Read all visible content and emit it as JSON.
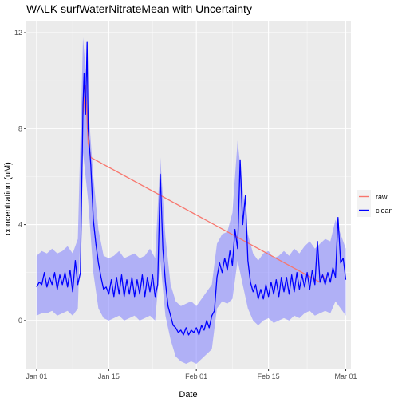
{
  "chart_data": {
    "type": "line",
    "title": "WALK surfWaterNitrateMean with Uncertainty",
    "xlabel": "Date",
    "ylabel": "concentration (uM)",
    "x_axis": {
      "type": "date",
      "range": [
        "2023-12-30",
        "2024-03-02"
      ],
      "ticks": [
        {
          "value": "2024-01-01",
          "label": "Jan 01"
        },
        {
          "value": "2024-01-15",
          "label": "Jan 15"
        },
        {
          "value": "2024-02-01",
          "label": "Feb 01"
        },
        {
          "value": "2024-02-15",
          "label": "Feb 15"
        },
        {
          "value": "2024-03-01",
          "label": "Mar 01"
        }
      ]
    },
    "y_axis": {
      "range": [
        -2,
        12.5
      ],
      "ticks": [
        0,
        4,
        8,
        12
      ]
    },
    "grid": true,
    "legend": {
      "position": "right",
      "entries": [
        {
          "label": "raw",
          "color": "#f8766d"
        },
        {
          "label": "clean",
          "color": "#0000ff"
        }
      ]
    },
    "uncertainty_band": {
      "color": "#7f7fff",
      "points": [
        [
          "2024-01-01",
          0.2,
          2.7
        ],
        [
          "2024-01-02",
          0.3,
          2.9
        ],
        [
          "2024-01-03",
          0.3,
          2.8
        ],
        [
          "2024-01-04",
          0.4,
          3.0
        ],
        [
          "2024-01-05",
          0.2,
          2.8
        ],
        [
          "2024-01-06",
          0.3,
          2.9
        ],
        [
          "2024-01-07",
          0.4,
          3.1
        ],
        [
          "2024-01-08",
          0.2,
          2.8
        ],
        [
          "2024-01-09",
          0.5,
          3.4
        ],
        [
          "2024-01-10",
          7.0,
          11.8
        ],
        [
          "2024-01-11",
          5.0,
          9.0
        ],
        [
          "2024-01-12",
          2.0,
          6.0
        ],
        [
          "2024-01-13",
          0.5,
          3.8
        ],
        [
          "2024-01-14",
          0.1,
          2.7
        ],
        [
          "2024-01-15",
          0.0,
          2.6
        ],
        [
          "2024-01-16",
          0.1,
          2.7
        ],
        [
          "2024-01-17",
          0.2,
          2.9
        ],
        [
          "2024-01-18",
          0.0,
          2.6
        ],
        [
          "2024-01-19",
          0.1,
          2.7
        ],
        [
          "2024-01-20",
          0.2,
          2.8
        ],
        [
          "2024-01-21",
          0.0,
          2.6
        ],
        [
          "2024-01-22",
          0.1,
          2.7
        ],
        [
          "2024-01-23",
          0.2,
          3.0
        ],
        [
          "2024-01-24",
          0.0,
          2.6
        ],
        [
          "2024-01-25",
          2.5,
          6.8
        ],
        [
          "2024-01-26",
          0.2,
          3.5
        ],
        [
          "2024-01-27",
          -0.8,
          1.5
        ],
        [
          "2024-01-28",
          -1.5,
          0.8
        ],
        [
          "2024-01-29",
          -1.7,
          0.6
        ],
        [
          "2024-01-30",
          -1.8,
          0.7
        ],
        [
          "2024-01-31",
          -1.7,
          0.8
        ],
        [
          "2024-02-01",
          -1.8,
          0.6
        ],
        [
          "2024-02-02",
          -1.6,
          0.9
        ],
        [
          "2024-02-03",
          -1.4,
          1.2
        ],
        [
          "2024-02-04",
          -1.2,
          1.5
        ],
        [
          "2024-02-05",
          0.5,
          3.2
        ],
        [
          "2024-02-06",
          0.8,
          3.6
        ],
        [
          "2024-02-07",
          0.7,
          3.7
        ],
        [
          "2024-02-08",
          0.9,
          4.5
        ],
        [
          "2024-02-09",
          2.5,
          7.5
        ],
        [
          "2024-02-10",
          1.5,
          5.5
        ],
        [
          "2024-02-11",
          0.5,
          3.6
        ],
        [
          "2024-02-12",
          0.0,
          2.8
        ],
        [
          "2024-02-13",
          -0.2,
          2.5
        ],
        [
          "2024-02-14",
          0.0,
          2.8
        ],
        [
          "2024-02-15",
          0.1,
          2.9
        ],
        [
          "2024-02-16",
          -0.1,
          2.6
        ],
        [
          "2024-02-17",
          0.0,
          2.7
        ],
        [
          "2024-02-18",
          0.1,
          2.9
        ],
        [
          "2024-02-19",
          0.0,
          2.7
        ],
        [
          "2024-02-20",
          0.2,
          3.0
        ],
        [
          "2024-02-21",
          0.1,
          2.8
        ],
        [
          "2024-02-22",
          0.3,
          3.1
        ],
        [
          "2024-02-23",
          0.4,
          3.3
        ],
        [
          "2024-02-24",
          0.2,
          3.0
        ],
        [
          "2024-02-25",
          0.3,
          3.2
        ],
        [
          "2024-02-26",
          0.4,
          3.4
        ],
        [
          "2024-02-27",
          0.3,
          3.3
        ],
        [
          "2024-02-28",
          0.8,
          4.2
        ],
        [
          "2024-02-29",
          0.5,
          3.6
        ],
        [
          "2024-03-01",
          0.2,
          3.0
        ]
      ]
    },
    "series": [
      {
        "name": "raw",
        "color": "#f8766d",
        "points": [
          [
            "2024-01-10",
            8.6
          ],
          [
            "2024-01-10.5",
            9.8
          ],
          [
            "2024-01-11",
            7.4
          ],
          [
            "2024-01-11.5",
            6.8
          ],
          [
            "2024-02-25",
            1.6
          ],
          [
            "2024-02-25.5",
            1.9
          ],
          [
            "2024-02-26",
            1.7
          ]
        ]
      },
      {
        "name": "clean",
        "color": "#0000ff",
        "points": [
          [
            "2024-01-01",
            1.4
          ],
          [
            "2024-01-01.5",
            1.6
          ],
          [
            "2024-01-02",
            1.5
          ],
          [
            "2024-01-02.5",
            2.0
          ],
          [
            "2024-01-03",
            1.4
          ],
          [
            "2024-01-03.5",
            1.8
          ],
          [
            "2024-01-04",
            1.5
          ],
          [
            "2024-01-04.5",
            2.0
          ],
          [
            "2024-01-05",
            1.3
          ],
          [
            "2024-01-05.5",
            1.9
          ],
          [
            "2024-01-06",
            1.5
          ],
          [
            "2024-01-06.5",
            2.0
          ],
          [
            "2024-01-07",
            1.4
          ],
          [
            "2024-01-07.5",
            2.1
          ],
          [
            "2024-01-08",
            1.2
          ],
          [
            "2024-01-08.5",
            2.5
          ],
          [
            "2024-01-09",
            1.5
          ],
          [
            "2024-01-09.5",
            2.0
          ],
          [
            "2024-01-10",
            9.0
          ],
          [
            "2024-01-10.2",
            10.3
          ],
          [
            "2024-01-10.5",
            8.6
          ],
          [
            "2024-01-10.8",
            11.6
          ],
          [
            "2024-01-11",
            8.0
          ],
          [
            "2024-01-11.5",
            6.5
          ],
          [
            "2024-01-12",
            4.2
          ],
          [
            "2024-01-12.5",
            3.2
          ],
          [
            "2024-01-13",
            2.4
          ],
          [
            "2024-01-13.5",
            1.8
          ],
          [
            "2024-01-14",
            1.3
          ],
          [
            "2024-01-14.5",
            1.4
          ],
          [
            "2024-01-15",
            1.1
          ],
          [
            "2024-01-15.5",
            1.7
          ],
          [
            "2024-01-16",
            1.0
          ],
          [
            "2024-01-16.5",
            1.8
          ],
          [
            "2024-01-17",
            1.1
          ],
          [
            "2024-01-17.5",
            1.9
          ],
          [
            "2024-01-18",
            1.0
          ],
          [
            "2024-01-18.5",
            1.7
          ],
          [
            "2024-01-19",
            1.1
          ],
          [
            "2024-01-19.5",
            1.8
          ],
          [
            "2024-01-20",
            1.0
          ],
          [
            "2024-01-20.5",
            1.7
          ],
          [
            "2024-01-21",
            1.1
          ],
          [
            "2024-01-21.5",
            1.9
          ],
          [
            "2024-01-22",
            1.0
          ],
          [
            "2024-01-22.5",
            1.8
          ],
          [
            "2024-01-23",
            1.2
          ],
          [
            "2024-01-23.5",
            1.9
          ],
          [
            "2024-01-24",
            1.0
          ],
          [
            "2024-01-24.5",
            1.5
          ],
          [
            "2024-01-25",
            6.1
          ],
          [
            "2024-01-25.5",
            3.0
          ],
          [
            "2024-01-26",
            1.6
          ],
          [
            "2024-01-26.5",
            0.6
          ],
          [
            "2024-01-27",
            0.2
          ],
          [
            "2024-01-27.5",
            -0.2
          ],
          [
            "2024-01-28",
            -0.3
          ],
          [
            "2024-01-28.5",
            -0.5
          ],
          [
            "2024-01-29",
            -0.4
          ],
          [
            "2024-01-29.5",
            -0.6
          ],
          [
            "2024-01-30",
            -0.3
          ],
          [
            "2024-01-30.5",
            -0.6
          ],
          [
            "2024-01-31",
            -0.4
          ],
          [
            "2024-01-31.5",
            -0.5
          ],
          [
            "2024-02-01",
            -0.3
          ],
          [
            "2024-02-01.5",
            -0.6
          ],
          [
            "2024-02-02",
            -0.2
          ],
          [
            "2024-02-02.5",
            -0.4
          ],
          [
            "2024-02-03",
            0.0
          ],
          [
            "2024-02-03.5",
            -0.3
          ],
          [
            "2024-02-04",
            0.2
          ],
          [
            "2024-02-04.5",
            0.4
          ],
          [
            "2024-02-05",
            1.8
          ],
          [
            "2024-02-05.5",
            2.4
          ],
          [
            "2024-02-06",
            2.0
          ],
          [
            "2024-02-06.5",
            2.6
          ],
          [
            "2024-02-07",
            2.1
          ],
          [
            "2024-02-07.5",
            2.9
          ],
          [
            "2024-02-08",
            2.3
          ],
          [
            "2024-02-08.5",
            3.8
          ],
          [
            "2024-02-09",
            3.0
          ],
          [
            "2024-02-09.5",
            6.7
          ],
          [
            "2024-02-10",
            4.0
          ],
          [
            "2024-02-10.5",
            5.2
          ],
          [
            "2024-02-11",
            2.5
          ],
          [
            "2024-02-11.5",
            1.6
          ],
          [
            "2024-02-12",
            1.2
          ],
          [
            "2024-02-12.5",
            1.5
          ],
          [
            "2024-02-13",
            0.9
          ],
          [
            "2024-02-13.5",
            1.3
          ],
          [
            "2024-02-14",
            0.9
          ],
          [
            "2024-02-14.5",
            1.5
          ],
          [
            "2024-02-15",
            1.0
          ],
          [
            "2024-02-15.5",
            1.6
          ],
          [
            "2024-02-16",
            1.1
          ],
          [
            "2024-02-16.5",
            1.7
          ],
          [
            "2024-02-17",
            1.0
          ],
          [
            "2024-02-17.5",
            1.8
          ],
          [
            "2024-02-18",
            1.2
          ],
          [
            "2024-02-18.5",
            1.8
          ],
          [
            "2024-02-19",
            1.1
          ],
          [
            "2024-02-19.5",
            1.9
          ],
          [
            "2024-02-20",
            1.2
          ],
          [
            "2024-02-20.5",
            2.0
          ],
          [
            "2024-02-21",
            1.3
          ],
          [
            "2024-02-21.5",
            1.9
          ],
          [
            "2024-02-22",
            1.4
          ],
          [
            "2024-02-22.5",
            2.0
          ],
          [
            "2024-02-23",
            1.3
          ],
          [
            "2024-02-23.5",
            2.1
          ],
          [
            "2024-02-24",
            1.5
          ],
          [
            "2024-02-24.5",
            3.3
          ],
          [
            "2024-02-25",
            1.6
          ],
          [
            "2024-02-25.5",
            1.9
          ],
          [
            "2024-02-26",
            1.5
          ],
          [
            "2024-02-26.5",
            2.0
          ],
          [
            "2024-02-27",
            1.6
          ],
          [
            "2024-02-27.5",
            2.2
          ],
          [
            "2024-02-28",
            1.8
          ],
          [
            "2024-02-28.5",
            4.3
          ],
          [
            "2024-02-29",
            2.4
          ],
          [
            "2024-02-29.5",
            2.6
          ],
          [
            "2024-03-01",
            1.7
          ]
        ]
      }
    ]
  }
}
